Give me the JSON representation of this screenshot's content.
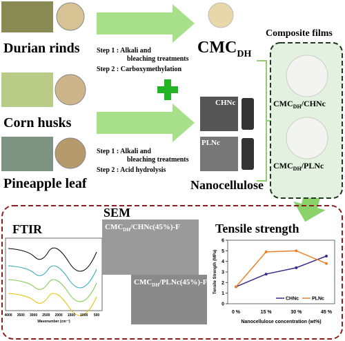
{
  "durian": {
    "label": "Durian rinds",
    "step1": "Step 1 : Alkali and",
    "step1b": "bleaching treatments",
    "step2": "Step 2 : Carboxymethylation"
  },
  "cmc": {
    "main": "CMC",
    "sub": "DH"
  },
  "composite": {
    "title": "Composite films",
    "film1": {
      "main": "CMC",
      "sub": "DH",
      "rest": "/CHNc"
    },
    "film2": {
      "main": "CMC",
      "sub": "DH",
      "rest": "/PLNc"
    }
  },
  "corn": {
    "label": "Corn husks"
  },
  "pineapple": {
    "label": "Pineapple leaf",
    "step1": "Step 1 : Alkali and",
    "step1b": "bleaching treatments",
    "step2": "Step 2 : Acid hydrolysis"
  },
  "nano": {
    "chnc": "CHNc",
    "plnc": "PLNc",
    "label": "Nanocellulose"
  },
  "ftir": {
    "title": "FTIR",
    "xlabel": "Wavenumber (cm⁻¹)",
    "xticks": [
      "4000",
      "3500",
      "3000",
      "2500",
      "2000",
      "1500",
      "1000",
      "500"
    ]
  },
  "sem": {
    "title": "SEM",
    "img1": {
      "main": "CMC",
      "sub": "DH",
      "rest": "/CHNc(45%)-F"
    },
    "img2": {
      "main": "CMC",
      "sub": "DH",
      "rest": "/PLNc(45%)-F"
    }
  },
  "tensile": {
    "title": "Tensile strength",
    "type": "line",
    "ylabel": "Tensile Strength (MPa)",
    "xlabel": "Nanocellulose concentration (wt%)",
    "categories": [
      "0 %",
      "15 %",
      "30 %",
      "45 %"
    ],
    "ylim": [
      0,
      6
    ],
    "yticks": [
      0,
      1,
      2,
      3,
      4,
      5,
      6
    ],
    "series": [
      {
        "name": "CHNc",
        "color": "#3c2a8c",
        "values": [
          1.6,
          2.8,
          3.4,
          4.5
        ]
      },
      {
        "name": "PLNc",
        "color": "#e8832a",
        "values": [
          1.6,
          4.9,
          5.0,
          3.8
        ]
      }
    ]
  }
}
